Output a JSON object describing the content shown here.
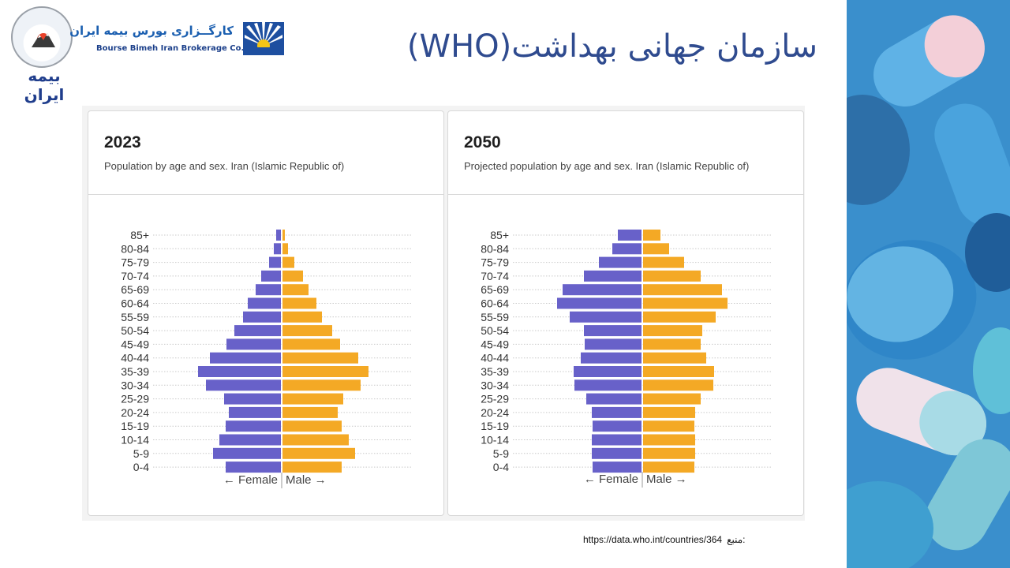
{
  "header": {
    "title": "سازمان جهانی بهداشت(WHO)",
    "logo_left_text": "بیمه ایران",
    "broker_name_fa": "کارگــزاری بورس بیمه ایران",
    "broker_name_en": "Bourse Bimeh Iran Brokerage Co."
  },
  "footer": {
    "source_url": "https://data.who.int/countries/364",
    "source_label": "منبع:"
  },
  "colors": {
    "female": "#6861c9",
    "male": "#f4a925",
    "title": "#2f4b8f"
  },
  "chart_data": [
    {
      "type": "bar",
      "orientation": "horizontal-pyramid",
      "year_label": "2023",
      "subtitle": "Population by age and sex. Iran (Islamic Republic of)",
      "categories": [
        "85+",
        "80-84",
        "75-79",
        "70-74",
        "65-69",
        "60-64",
        "55-59",
        "50-54",
        "45-49",
        "40-44",
        "35-39",
        "30-34",
        "25-29",
        "20-24",
        "15-19",
        "10-14",
        "5-9",
        "0-4"
      ],
      "series": [
        {
          "name": "Female",
          "values": [
            0.06,
            0.09,
            0.15,
            0.25,
            0.32,
            0.42,
            0.48,
            0.59,
            0.69,
            0.9,
            1.05,
            0.95,
            0.72,
            0.66,
            0.7,
            0.78,
            0.86,
            0.7
          ]
        },
        {
          "name": "Male",
          "values": [
            0.03,
            0.07,
            0.15,
            0.26,
            0.33,
            0.43,
            0.5,
            0.63,
            0.73,
            0.96,
            1.09,
            0.99,
            0.77,
            0.7,
            0.75,
            0.84,
            0.92,
            0.75
          ]
        }
      ],
      "legend": {
        "female": "← Female",
        "male": "Male →"
      },
      "grid": true
    },
    {
      "type": "bar",
      "orientation": "horizontal-pyramid",
      "year_label": "2050",
      "subtitle": "Projected population by age and sex. Iran (Islamic Republic of)",
      "categories": [
        "85+",
        "80-84",
        "75-79",
        "70-74",
        "65-69",
        "60-64",
        "55-59",
        "50-54",
        "45-49",
        "40-44",
        "35-39",
        "30-34",
        "25-29",
        "20-24",
        "15-19",
        "10-14",
        "5-9",
        "0-4"
      ],
      "series": [
        {
          "name": "Female",
          "values": [
            0.3,
            0.37,
            0.54,
            0.73,
            1.0,
            1.07,
            0.91,
            0.73,
            0.72,
            0.77,
            0.86,
            0.85,
            0.7,
            0.63,
            0.62,
            0.63,
            0.63,
            0.62
          ]
        },
        {
          "name": "Male",
          "values": [
            0.22,
            0.33,
            0.52,
            0.73,
            1.0,
            1.07,
            0.92,
            0.75,
            0.73,
            0.8,
            0.9,
            0.89,
            0.73,
            0.66,
            0.65,
            0.66,
            0.66,
            0.65
          ]
        }
      ],
      "legend": {
        "female": "← Female",
        "male": "Male →"
      },
      "grid": true
    }
  ]
}
